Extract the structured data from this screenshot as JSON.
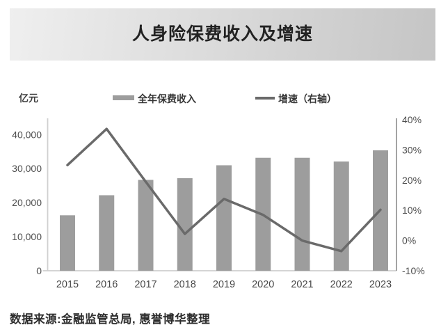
{
  "title": "人身险保费收入及增速",
  "axis_unit_label": "亿元",
  "legend": {
    "bars_label": "全年保费收入",
    "line_label": "增速（右轴）"
  },
  "source_text": "数据来源:金融监管总局, 惠誉博华整理",
  "colors": {
    "bar": "#9d9d9d",
    "line": "#6a6a6a",
    "axis": "#cfcfcf",
    "axis_right": "#999999",
    "banner_from": "#efefef",
    "banner_to": "#c5c5c5"
  },
  "chart_data": {
    "type": "bar",
    "subtype": "bar-with-line-dual-axis",
    "title": "人身险保费收入及增速",
    "categories": [
      "2015",
      "2016",
      "2017",
      "2018",
      "2019",
      "2020",
      "2021",
      "2022",
      "2023"
    ],
    "series": [
      {
        "name": "全年保费收入",
        "type": "bar",
        "axis": "left",
        "unit": "亿元",
        "values": [
          16300,
          22200,
          26700,
          27200,
          31000,
          33200,
          33200,
          32100,
          35400
        ]
      },
      {
        "name": "增速（右轴）",
        "type": "line",
        "axis": "right",
        "unit": "%",
        "values": [
          25,
          37,
          19.5,
          2.2,
          13.8,
          8.5,
          0,
          -3.5,
          10.2
        ]
      }
    ],
    "left_axis": {
      "label": "亿元",
      "tick_labels": [
        "0",
        "10,000",
        "20,000",
        "30,000",
        "40,000"
      ],
      "tick_values": [
        0,
        10000,
        20000,
        30000,
        40000
      ],
      "range": [
        0,
        44800
      ]
    },
    "right_axis": {
      "label": "增速（右轴）",
      "tick_labels": [
        "-10%",
        "0%",
        "10%",
        "20%",
        "30%",
        "40%"
      ],
      "tick_values": [
        -10,
        0,
        10,
        20,
        30,
        40
      ],
      "range": [
        -10,
        40.5
      ]
    },
    "grid": false,
    "legend_position": "top"
  }
}
